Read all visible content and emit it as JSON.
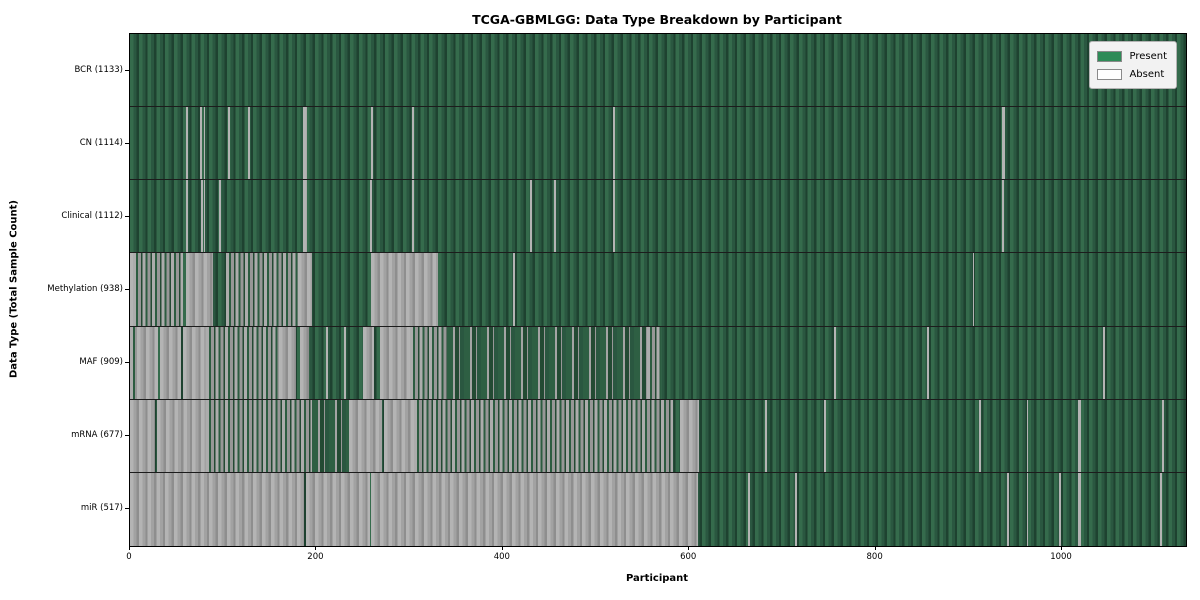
{
  "chart_data": {
    "type": "heatmap",
    "title": "TCGA-GBMLGG: Data Type Breakdown by Participant",
    "xlabel": "Participant",
    "ylabel": "Data Type (Total Sample Count)",
    "x_max": 1133,
    "x_ticks": [
      0,
      200,
      400,
      600,
      800,
      1000
    ],
    "legend_position": "upper right",
    "grid": false,
    "colors": {
      "present": "#2e8b57",
      "absent": "#ffffff",
      "absent_rendered": "#a8a8a8",
      "row_edge": "#1c1c1c"
    },
    "legend": [
      {
        "label": "Present",
        "color": "#2e8b57"
      },
      {
        "label": "Absent",
        "color": "#ffffff"
      }
    ],
    "rows": [
      {
        "label": "BCR (1133)",
        "name": "BCR",
        "total_samples": 1133,
        "segments": []
      },
      {
        "label": "CN (1114)",
        "name": "CN",
        "total_samples": 1114,
        "segments": [
          [
            60,
            62,
            "a"
          ],
          [
            75,
            77,
            "a"
          ],
          [
            79,
            81,
            "a"
          ],
          [
            105,
            107,
            "a"
          ],
          [
            127,
            129,
            "a"
          ],
          [
            186,
            190,
            "a"
          ],
          [
            259,
            261,
            "a"
          ],
          [
            303,
            305,
            "a"
          ],
          [
            518,
            520,
            "a"
          ],
          [
            936,
            939,
            "a"
          ]
        ]
      },
      {
        "label": "Clinical (1112)",
        "name": "Clinical",
        "total_samples": 1112,
        "segments": [
          [
            60,
            62,
            "a"
          ],
          [
            76,
            78,
            "a"
          ],
          [
            79,
            81,
            "a"
          ],
          [
            96,
            98,
            "a"
          ],
          [
            186,
            190,
            "a"
          ],
          [
            258,
            260,
            "a"
          ],
          [
            303,
            305,
            "a"
          ],
          [
            429,
            431,
            "a"
          ],
          [
            455,
            457,
            "a"
          ],
          [
            518,
            520,
            "a"
          ],
          [
            936,
            938,
            "a"
          ]
        ]
      },
      {
        "label": "Methylation (938)",
        "name": "Methylation",
        "total_samples": 938,
        "segments": [
          [
            0,
            3,
            "a"
          ],
          [
            3,
            57,
            "m"
          ],
          [
            60,
            89,
            "a"
          ],
          [
            103,
            180,
            "m"
          ],
          [
            180,
            195,
            "a"
          ],
          [
            259,
            330,
            "a"
          ],
          [
            411,
            413,
            "a"
          ],
          [
            904,
            906,
            "a"
          ]
        ]
      },
      {
        "label": "MAF (909)",
        "name": "MAF",
        "total_samples": 909,
        "segments": [
          [
            0,
            8,
            "m"
          ],
          [
            8,
            30,
            "a"
          ],
          [
            32,
            55,
            "a"
          ],
          [
            57,
            82,
            "a"
          ],
          [
            82,
            160,
            "m"
          ],
          [
            160,
            178,
            "a"
          ],
          [
            182,
            192,
            "a"
          ],
          [
            210,
            212,
            "a"
          ],
          [
            230,
            232,
            "a"
          ],
          [
            250,
            262,
            "a"
          ],
          [
            268,
            300,
            "a"
          ],
          [
            300,
            340,
            "m"
          ],
          [
            340,
            555,
            "s"
          ],
          [
            555,
            570,
            "m"
          ],
          [
            755,
            757,
            "a"
          ],
          [
            855,
            857,
            "a"
          ],
          [
            1044,
            1046,
            "a"
          ]
        ]
      },
      {
        "label": "mRNA (677)",
        "name": "mRNA",
        "total_samples": 677,
        "segments": [
          [
            0,
            27,
            "a"
          ],
          [
            29,
            82,
            "a"
          ],
          [
            82,
            195,
            "m"
          ],
          [
            195,
            235,
            "s"
          ],
          [
            235,
            270,
            "a"
          ],
          [
            273,
            305,
            "a"
          ],
          [
            305,
            583,
            "m"
          ],
          [
            590,
            611,
            "a"
          ],
          [
            681,
            683,
            "a"
          ],
          [
            745,
            747,
            "a"
          ],
          [
            911,
            913,
            "a"
          ],
          [
            962,
            964,
            "a"
          ],
          [
            1017,
            1020,
            "a"
          ],
          [
            1107,
            1109,
            "a"
          ]
        ]
      },
      {
        "label": "miR (517)",
        "name": "miR",
        "total_samples": 517,
        "segments": [
          [
            0,
            187,
            "a"
          ],
          [
            189,
            257,
            "a"
          ],
          [
            259,
            609,
            "a"
          ],
          [
            663,
            665,
            "a"
          ],
          [
            714,
            716,
            "a"
          ],
          [
            941,
            943,
            "a"
          ],
          [
            962,
            964,
            "a"
          ],
          [
            997,
            999,
            "a"
          ],
          [
            1017,
            1020,
            "a"
          ],
          [
            1105,
            1107,
            "a"
          ]
        ]
      }
    ],
    "segment_states": {
      "a": "absent",
      "m": "mixed mostly-absent stripes",
      "s": "mostly-present sparse stripes"
    }
  }
}
